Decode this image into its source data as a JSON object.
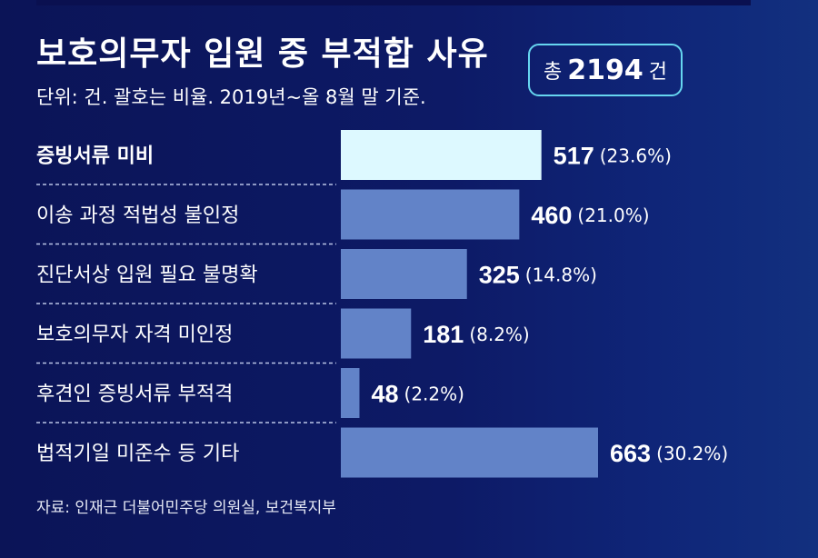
{
  "header": {
    "title": "보호의무자 입원 중 부적합 사유",
    "subtitle": "단위: 건. 괄호는 비율.  2019년~올 8월 말 기준.",
    "total_label": "총",
    "total_value": "2194",
    "total_unit": "건"
  },
  "chart_data": {
    "type": "bar",
    "orientation": "horizontal",
    "title": "보호의무자 입원 중 부적합 사유",
    "unit": "건",
    "categories": [
      "증빙서류 미비",
      "이송 과정 적법성 불인정",
      "진단서상 입원 필요 불명확",
      "보호의무자 자격 미인정",
      "후견인 증빙서류 부적격",
      "법적기일 미준수 등 기타"
    ],
    "values": [
      517,
      460,
      325,
      181,
      48,
      663
    ],
    "percent_labels": [
      "(23.6%)",
      "(21.0%)",
      "(14.8%)",
      "(8.2%)",
      "(2.2%)",
      "(30.2%)"
    ],
    "highlight_index": 0,
    "colors": {
      "highlight": "#ddf9ff",
      "bar": "#6283c8",
      "divider": "#b9c4e6"
    },
    "xlim": [
      0,
      663
    ],
    "grid": false
  },
  "footer": {
    "source": "자료: 인재근 더불어민주당 의원실, 보건복지부"
  }
}
